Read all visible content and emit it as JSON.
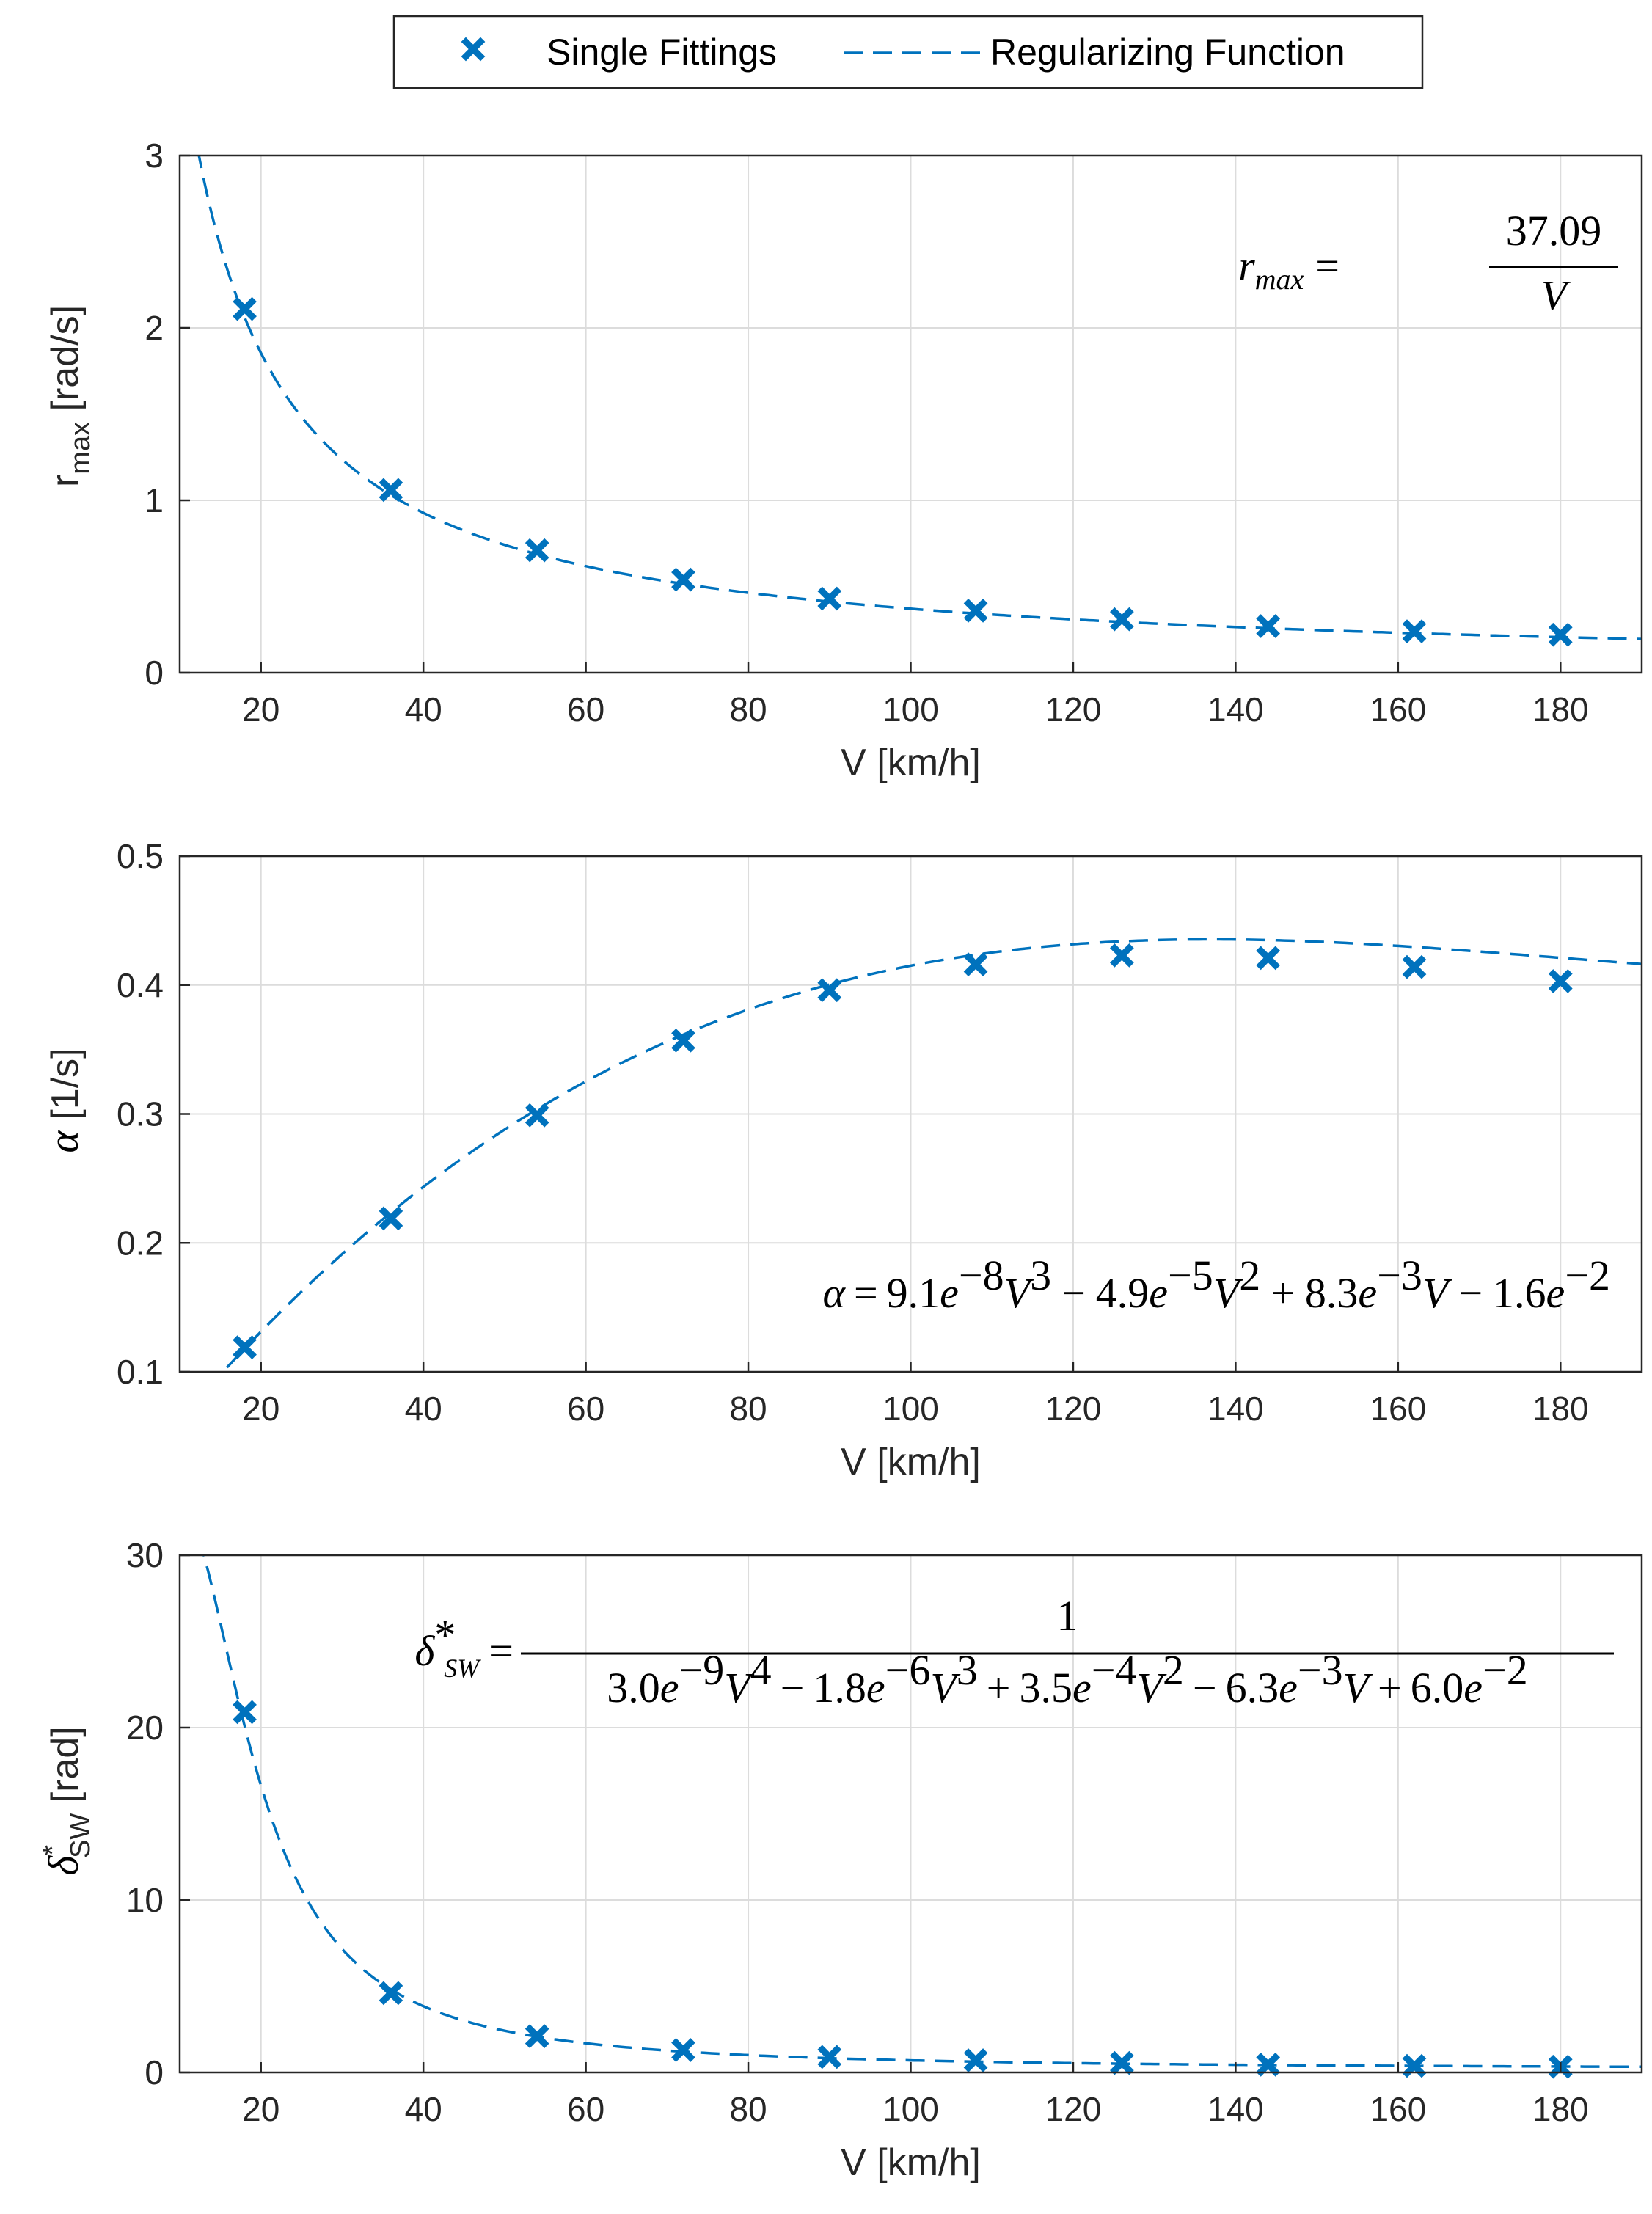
{
  "colors": {
    "series": "#0072BD",
    "axis": "#262626",
    "grid": "#dcdcdc"
  },
  "legend": {
    "items": [
      {
        "label": "Single Fittings",
        "style": "marker"
      },
      {
        "label": "Regularizing Function",
        "style": "dashed-line"
      }
    ]
  },
  "chart_data": [
    {
      "type": "scatter+line",
      "xlabel": "V [km/h]",
      "ylabel": {
        "main": "r",
        "sub": "max",
        "unit": " [rad/s]"
      },
      "xlim": [
        10,
        190
      ],
      "ylim": [
        0,
        3
      ],
      "xticks": [
        20,
        40,
        60,
        80,
        100,
        120,
        140,
        160,
        180
      ],
      "yticks": [
        0,
        1,
        2,
        3
      ],
      "grid": true,
      "points": {
        "x": [
          18,
          36,
          54,
          72,
          90,
          108,
          126,
          144,
          162,
          180
        ],
        "y": [
          2.11,
          1.06,
          0.71,
          0.54,
          0.43,
          0.36,
          0.31,
          0.27,
          0.24,
          0.22
        ]
      },
      "fit": {
        "kind": "inverse",
        "coeffs": [
          37.09
        ]
      },
      "equation": {
        "lhs": "r",
        "lhs_sub": "max",
        "eq": "=",
        "num": "37.09",
        "den": "V"
      }
    },
    {
      "type": "scatter+line",
      "xlabel": "V [km/h]",
      "ylabel": {
        "main": "α",
        "unit": " [1/s]"
      },
      "xlim": [
        10,
        190
      ],
      "ylim": [
        0.1,
        0.5
      ],
      "xticks": [
        20,
        40,
        60,
        80,
        100,
        120,
        140,
        160,
        180
      ],
      "yticks": [
        0.1,
        0.2,
        0.3,
        0.4,
        0.5
      ],
      "grid": true,
      "points": {
        "x": [
          18,
          36,
          54,
          72,
          90,
          108,
          126,
          144,
          162,
          180
        ],
        "y": [
          0.119,
          0.219,
          0.299,
          0.357,
          0.396,
          0.416,
          0.423,
          0.421,
          0.414,
          0.403
        ]
      },
      "fit": {
        "kind": "poly3",
        "coeffs": [
          9.1e-08,
          -4.9e-05,
          0.0083,
          -0.016
        ]
      },
      "equation": {
        "lhs": "α",
        "eq": "=",
        "c3": "9.1",
        "e3": "−8",
        "v3": "3",
        "op1": "−",
        "c2": "4.9",
        "e2": "−5",
        "v2": "2",
        "op2": "+",
        "c1": "8.3",
        "e1": "−3",
        "op3": "−",
        "c0": "1.6",
        "e0": "−2",
        "e": "e",
        "V": "V"
      }
    },
    {
      "type": "scatter+line",
      "xlabel": "V [km/h]",
      "ylabel": {
        "main": "δ",
        "sup": "*",
        "sub": "SW",
        "unit": " [rad]"
      },
      "xlim": [
        10,
        190
      ],
      "ylim": [
        0,
        30
      ],
      "xticks": [
        20,
        40,
        60,
        80,
        100,
        120,
        140,
        160,
        180
      ],
      "yticks": [
        0,
        10,
        20,
        30
      ],
      "grid": true,
      "points": {
        "x": [
          18,
          36,
          54,
          72,
          90,
          108,
          126,
          144,
          162,
          180
        ],
        "y": [
          20.9,
          4.6,
          2.1,
          1.3,
          0.9,
          0.7,
          0.55,
          0.45,
          0.38,
          0.33
        ]
      },
      "fit": {
        "kind": "inv-poly4",
        "coeffs": [
          3e-09,
          -1.8e-06,
          0.00035,
          -0.0063,
          0.06
        ]
      },
      "equation": {
        "lhs": "δ",
        "lhs_sup": "*",
        "lhs_sub": "SW",
        "eq": "=",
        "num": "1",
        "c4": "3.0",
        "e4": "−9",
        "v4": "4",
        "op1": "−",
        "c3": "1.8",
        "e3": "−6",
        "v3": "3",
        "op2": "+",
        "c2": "3.5",
        "e2": "−4",
        "v2": "2",
        "op3": "−",
        "c1": "6.3",
        "e1": "−3",
        "op4": "+",
        "c0": "6.0",
        "e0": "−2",
        "e": "e",
        "V": "V"
      }
    }
  ]
}
